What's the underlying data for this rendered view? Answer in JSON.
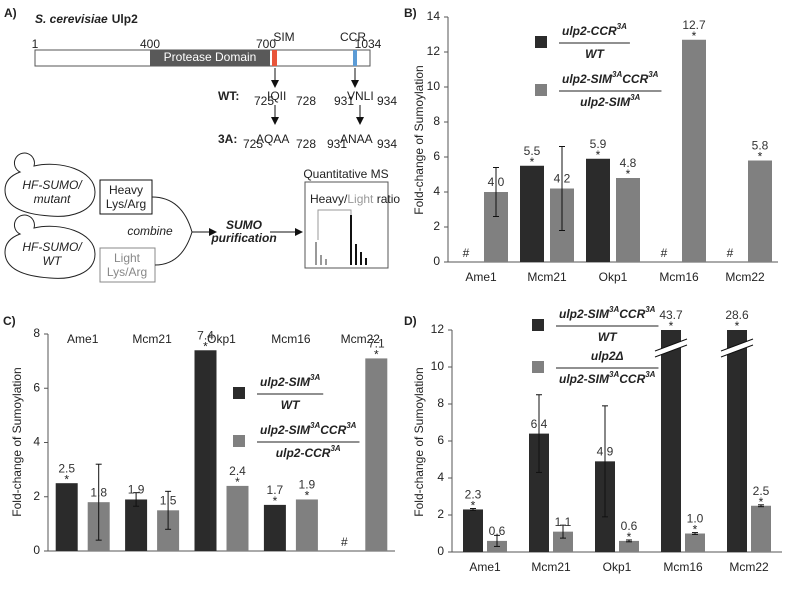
{
  "panel_a": {
    "label": "A)",
    "species": "S. cerevisiae",
    "protein": "Ulp2",
    "residues": [
      1,
      400,
      700,
      1034
    ],
    "domain": "Protease Domain",
    "motifs": [
      "SIM",
      "CCR"
    ],
    "wt": {
      "label": "WT:",
      "sim": {
        "start": 725,
        "seq": "IQII",
        "end": 728
      },
      "ccr": {
        "start": 931,
        "seq": "VNLI",
        "end": 934
      }
    },
    "mut": {
      "label": "3A:",
      "sim": {
        "start": 725,
        "seq": "AQAA",
        "end": 728
      },
      "ccr": {
        "start": 931,
        "seq": "ANAA",
        "end": 934
      }
    },
    "workflow": {
      "strain1": [
        "HF-SUMO/",
        "mutant"
      ],
      "strain2": [
        "HF-SUMO/",
        "WT"
      ],
      "heavy": [
        "Heavy",
        "Lys/Arg"
      ],
      "light": [
        "Light",
        "Lys/Arg"
      ],
      "combine": "combine",
      "purification": [
        "SUMO",
        "purification"
      ],
      "ms": "Quantitative MS",
      "ratio": [
        "Heavy/",
        "Light",
        " ratio"
      ]
    }
  },
  "chart_data": [
    {
      "type": "bar",
      "label": "B)",
      "ylabel": "Fold-change of Sumoylation",
      "categories": [
        "Ame1",
        "Mcm21",
        "Okp1",
        "Mcm16",
        "Mcm22"
      ],
      "ylim": [
        0,
        14
      ],
      "yticks": [
        0,
        2,
        4,
        6,
        8,
        10,
        12,
        14
      ],
      "missing_marker": "#",
      "significance_marker": "*",
      "series": [
        {
          "name": {
            "numerator": [
              "ulp2-CCR",
              "3A"
            ],
            "denominator": [
              "WT"
            ]
          },
          "color": "#2b2b2b",
          "values": [
            null,
            5.5,
            5.9,
            null,
            null
          ],
          "value_labels": [
            null,
            "5.5",
            "5.9",
            null,
            null
          ],
          "significant": [
            false,
            true,
            true,
            false,
            false
          ]
        },
        {
          "name": {
            "numerator": [
              "ulp2-SIM",
              "3A",
              "CCR",
              "3A"
            ],
            "denominator": [
              "ulp2-SIM",
              "3A"
            ]
          },
          "color": "#808080",
          "values": [
            4.0,
            4.2,
            4.8,
            12.7,
            5.8
          ],
          "value_labels": [
            "4.0",
            "4.2",
            "4.8",
            "12.7",
            "5.8"
          ],
          "errors": [
            1.4,
            2.4,
            null,
            null,
            null
          ],
          "significant": [
            false,
            false,
            true,
            true,
            true
          ]
        }
      ]
    },
    {
      "type": "bar",
      "label": "C)",
      "ylabel": "Fold-change of Sumoylation",
      "categories": [
        "Ame1",
        "Mcm21",
        "Okp1",
        "Mcm16",
        "Mcm22"
      ],
      "ylim": [
        0,
        8
      ],
      "yticks": [
        0,
        2,
        4,
        6,
        8
      ],
      "missing_marker": "#",
      "significance_marker": "*",
      "series": [
        {
          "name": {
            "numerator": [
              "ulp2-SIM",
              "3A"
            ],
            "denominator": [
              "WT"
            ]
          },
          "color": "#2b2b2b",
          "values": [
            2.5,
            1.9,
            7.4,
            1.7,
            null
          ],
          "value_labels": [
            "2.5",
            "1.9",
            "7.4",
            "1.7",
            null
          ],
          "errors": [
            null,
            0.25,
            null,
            null,
            null
          ],
          "significant": [
            true,
            false,
            true,
            true,
            false
          ]
        },
        {
          "name": {
            "numerator": [
              "ulp2-SIM",
              "3A",
              "CCR",
              "3A"
            ],
            "denominator": [
              "ulp2-CCR",
              "3A"
            ]
          },
          "color": "#808080",
          "values": [
            1.8,
            1.5,
            2.4,
            1.9,
            7.1
          ],
          "value_labels": [
            "1.8",
            "1.5",
            "2.4",
            "1.9",
            "7.1"
          ],
          "errors": [
            1.4,
            0.7,
            null,
            null,
            null
          ],
          "significant": [
            false,
            false,
            true,
            true,
            true
          ]
        }
      ]
    },
    {
      "type": "bar",
      "label": "D)",
      "ylabel": "Fold-change of Sumoylation",
      "categories": [
        "Ame1",
        "Mcm21",
        "Okp1",
        "Mcm16",
        "Mcm22"
      ],
      "ylim": [
        0,
        12
      ],
      "yticks": [
        0,
        2,
        4,
        6,
        8,
        10,
        12
      ],
      "significance_marker": "*",
      "series": [
        {
          "name": {
            "numerator": [
              "ulp2-SIM",
              "3A",
              "CCR",
              "3A"
            ],
            "denominator": [
              "WT"
            ]
          },
          "color": "#2b2b2b",
          "values": [
            2.3,
            6.4,
            4.9,
            43.7,
            28.6
          ],
          "value_labels": [
            "2.3",
            "6.4",
            "4.9",
            "43.7",
            "28.6"
          ],
          "errors": [
            0.05,
            2.1,
            3.0,
            null,
            null
          ],
          "significant": [
            true,
            false,
            false,
            true,
            true
          ]
        },
        {
          "name": {
            "numerator": [
              "ulp2Δ"
            ],
            "denominator": [
              "ulp2-SIM",
              "3A",
              "CCR",
              "3A"
            ]
          },
          "color": "#808080",
          "values": [
            0.6,
            1.1,
            0.6,
            1.0,
            2.5
          ],
          "value_labels": [
            "0.6",
            "1.1",
            "0.6",
            "1.0",
            "2.5"
          ],
          "errors": [
            0.3,
            0.35,
            0.05,
            0.05,
            0.05
          ],
          "significant": [
            false,
            false,
            true,
            true,
            true
          ]
        }
      ]
    }
  ]
}
